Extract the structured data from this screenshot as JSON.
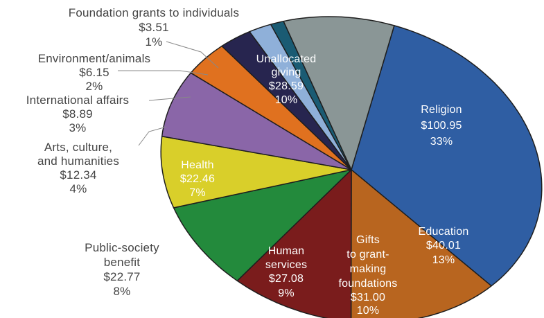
{
  "chart_data": {
    "type": "pie",
    "title": "",
    "units": "$",
    "slices": [
      {
        "key": "religion",
        "label": "Religion",
        "value": 100.95,
        "value_text": "$100.95",
        "pct_text": "33%",
        "color": "#2f5ea3"
      },
      {
        "key": "education",
        "label": "Education",
        "value": 40.01,
        "value_text": "$40.01",
        "pct_text": "13%",
        "color": "#b8651f"
      },
      {
        "key": "gifts",
        "label": "Gifts to grant-making foundations",
        "value": 31.0,
        "value_text": "$31.00",
        "pct_text": "10%",
        "color": "#7a1c1c"
      },
      {
        "key": "human",
        "label": "Human services",
        "value": 27.08,
        "value_text": "$27.08",
        "pct_text": "9%",
        "color": "#238a3c"
      },
      {
        "key": "public",
        "label": "Public-society benefit",
        "value": 22.77,
        "value_text": "$22.77",
        "pct_text": "8%",
        "color": "#d9cf2a"
      },
      {
        "key": "health",
        "label": "Health",
        "value": 22.46,
        "value_text": "$22.46",
        "pct_text": "7%",
        "color": "#8a66a8"
      },
      {
        "key": "arts",
        "label": "Arts, culture, and humanities",
        "value": 12.34,
        "value_text": "$12.34",
        "pct_text": "4%",
        "color": "#e0711f"
      },
      {
        "key": "intl",
        "label": "International affairs",
        "value": 8.89,
        "value_text": "$8.89",
        "pct_text": "3%",
        "color": "#27254f"
      },
      {
        "key": "env",
        "label": "Environment/animals",
        "value": 6.15,
        "value_text": "$6.15",
        "pct_text": "2%",
        "color": "#8fb0d9"
      },
      {
        "key": "indiv",
        "label": "Foundation grants to individuals",
        "value": 3.51,
        "value_text": "$3.51",
        "pct_text": "1%",
        "color": "#1a5b73"
      },
      {
        "key": "unalloc",
        "label": "Unallocated giving",
        "value": 28.59,
        "value_text": "$28.59",
        "pct_text": "10%",
        "color": "#8a9696"
      }
    ]
  },
  "labels": {
    "religion": {
      "l1": "Religion",
      "v": "$100.95",
      "p": "33%"
    },
    "education": {
      "l1": "Education",
      "v": "$40.01",
      "p": "13%"
    },
    "gifts": {
      "l1": "Gifts",
      "l2": "to grant-",
      "l3": "making",
      "l4": "foundations",
      "v": "$31.00",
      "p": "10%"
    },
    "human": {
      "l1": "Human",
      "l2": "services",
      "v": "$27.08",
      "p": "9%"
    },
    "public": {
      "l1": "Public-society",
      "l2": "benefit",
      "v": "$22.77",
      "p": "8%"
    },
    "health": {
      "l1": "Health",
      "v": "$22.46",
      "p": "7%"
    },
    "arts": {
      "l1": "Arts, culture,",
      "l2": "and humanities",
      "v": "$12.34",
      "p": "4%"
    },
    "intl": {
      "l1": "International affairs",
      "v": "$8.89",
      "p": "3%"
    },
    "env": {
      "l1": "Environment/animals",
      "v": "$6.15",
      "p": "2%"
    },
    "indiv": {
      "l1": "Foundation grants to individuals",
      "v": "$3.51",
      "p": "1%"
    },
    "unalloc": {
      "l1": "Unallocated",
      "l2": "giving",
      "v": "$28.59",
      "p": "10%"
    }
  }
}
